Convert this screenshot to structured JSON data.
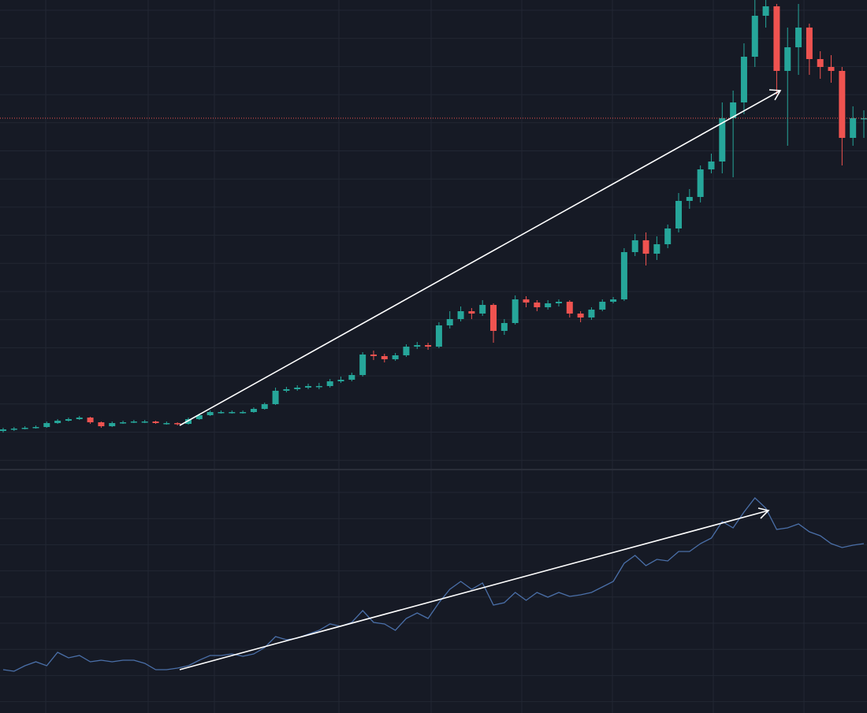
{
  "chart_data": [
    {
      "type": "candlestick",
      "open": [
        48,
        50,
        51,
        52,
        53,
        58,
        61,
        63,
        65,
        59,
        54,
        58,
        59,
        60,
        60,
        58,
        58,
        57,
        63,
        68,
        72,
        72,
        72,
        72,
        76,
        82,
        99,
        101,
        103,
        105,
        105,
        111,
        113,
        119,
        145,
        143,
        139,
        144,
        155,
        157,
        155,
        182,
        190,
        200,
        197,
        208,
        175,
        185,
        215,
        211,
        205,
        210,
        212,
        197,
        192,
        202,
        212,
        215,
        275,
        290,
        273,
        285,
        305,
        340,
        345,
        380,
        390,
        445,
        465,
        523,
        575,
        587,
        505,
        535,
        560,
        520,
        510,
        505,
        420,
        445
      ],
      "high": [
        52,
        53,
        54,
        55,
        60,
        63,
        65,
        67,
        66,
        60,
        60,
        61,
        62,
        62,
        61,
        60,
        59,
        65,
        70,
        74,
        74,
        74,
        74,
        78,
        84,
        103,
        104,
        106,
        108,
        109,
        114,
        117,
        122,
        148,
        150,
        146,
        147,
        158,
        161,
        160,
        186,
        200,
        206,
        204,
        214,
        210,
        190,
        220,
        219,
        214,
        214,
        215,
        214,
        200,
        205,
        215,
        218,
        280,
        298,
        300,
        295,
        310,
        350,
        355,
        385,
        400,
        465,
        480,
        540,
        600,
        600,
        590,
        560,
        590,
        565,
        530,
        525,
        510,
        460,
        455
      ],
      "low": [
        46,
        48,
        50,
        51,
        52,
        57,
        60,
        62,
        57,
        52,
        53,
        57,
        58,
        58,
        57,
        56,
        55,
        56,
        62,
        67,
        70,
        70,
        70,
        71,
        75,
        81,
        97,
        99,
        101,
        101,
        103,
        109,
        111,
        117,
        138,
        135,
        137,
        142,
        152,
        151,
        153,
        178,
        187,
        190,
        194,
        160,
        170,
        183,
        205,
        200,
        202,
        206,
        192,
        186,
        189,
        200,
        210,
        213,
        270,
        258,
        265,
        280,
        300,
        330,
        338,
        375,
        375,
        370,
        450,
        510,
        560,
        475,
        410,
        500,
        500,
        495,
        490,
        385,
        410,
        420
      ],
      "close": [
        50,
        51,
        52,
        53,
        58,
        61,
        63,
        65,
        59,
        54,
        58,
        59,
        60,
        60,
        58,
        58,
        57,
        63,
        68,
        72,
        72,
        72,
        72,
        76,
        82,
        99,
        101,
        103,
        105,
        105,
        111,
        113,
        119,
        145,
        143,
        139,
        144,
        155,
        157,
        155,
        182,
        190,
        200,
        197,
        208,
        175,
        185,
        215,
        211,
        205,
        210,
        212,
        197,
        192,
        202,
        212,
        215,
        275,
        290,
        273,
        285,
        305,
        340,
        345,
        380,
        390,
        445,
        465,
        523,
        575,
        587,
        505,
        535,
        560,
        520,
        510,
        505,
        420,
        445,
        445
      ],
      "ylim": [
        0,
        595
      ],
      "up_color": "#26a69a",
      "down_color": "#ef5350",
      "price_line": true,
      "price_line_color": "#ef5350"
    },
    {
      "type": "line",
      "values": [
        55,
        53,
        60,
        65,
        60,
        77,
        70,
        73,
        65,
        67,
        65,
        67,
        67,
        63,
        55,
        55,
        57,
        60,
        67,
        73,
        73,
        75,
        72,
        75,
        83,
        97,
        93,
        95,
        100,
        105,
        113,
        110,
        115,
        130,
        115,
        113,
        105,
        120,
        127,
        120,
        140,
        157,
        167,
        157,
        165,
        137,
        140,
        153,
        143,
        153,
        147,
        153,
        148,
        150,
        153,
        160,
        167,
        190,
        200,
        187,
        195,
        193,
        205,
        205,
        215,
        222,
        243,
        235,
        255,
        273,
        260,
        233,
        235,
        240,
        230,
        225,
        215,
        210,
        213,
        215
      ],
      "ylim": [
        0,
        308
      ],
      "color": "#4a6fa8"
    }
  ]
}
